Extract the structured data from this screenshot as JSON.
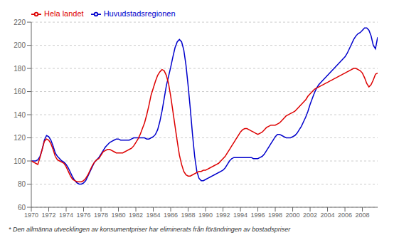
{
  "chart_data": {
    "type": "line",
    "footnote": "* Den allmänna utvecklingen av konsumentpriser har eliminerats från förändringen av bostadspriser",
    "x": [
      1970,
      1970.25,
      1970.5,
      1970.75,
      1971,
      1971.25,
      1971.5,
      1971.75,
      1972,
      1972.25,
      1972.5,
      1972.75,
      1973,
      1973.25,
      1973.5,
      1973.75,
      1974,
      1974.25,
      1974.5,
      1974.75,
      1975,
      1975.25,
      1975.5,
      1975.75,
      1976,
      1976.25,
      1976.5,
      1976.75,
      1977,
      1977.25,
      1977.5,
      1977.75,
      1978,
      1978.25,
      1978.5,
      1978.75,
      1979,
      1979.25,
      1979.5,
      1979.75,
      1980,
      1980.25,
      1980.5,
      1980.75,
      1981,
      1981.25,
      1981.5,
      1981.75,
      1982,
      1982.25,
      1982.5,
      1982.75,
      1983,
      1983.25,
      1983.5,
      1983.75,
      1984,
      1984.25,
      1984.5,
      1984.75,
      1985,
      1985.25,
      1985.5,
      1985.75,
      1986,
      1986.25,
      1986.5,
      1986.75,
      1987,
      1987.25,
      1987.5,
      1987.75,
      1988,
      1988.25,
      1988.5,
      1988.75,
      1989,
      1989.25,
      1989.5,
      1989.75,
      1990,
      1990.25,
      1990.5,
      1990.75,
      1991,
      1991.25,
      1991.5,
      1991.75,
      1992,
      1992.25,
      1992.5,
      1992.75,
      1993,
      1993.25,
      1993.5,
      1993.75,
      1994,
      1994.25,
      1994.5,
      1994.75,
      1995,
      1995.25,
      1995.5,
      1995.75,
      1996,
      1996.25,
      1996.5,
      1996.75,
      1997,
      1997.25,
      1997.5,
      1997.75,
      1998,
      1998.25,
      1998.5,
      1998.75,
      1999,
      1999.25,
      1999.5,
      1999.75,
      2000,
      2000.25,
      2000.5,
      2000.75,
      2001,
      2001.25,
      2001.5,
      2001.75,
      2002,
      2002.25,
      2002.5,
      2002.75,
      2003,
      2003.25,
      2003.5,
      2003.75,
      2004,
      2004.25,
      2004.5,
      2004.75,
      2005,
      2005.25,
      2005.5,
      2005.75,
      2006,
      2006.25,
      2006.5,
      2006.75,
      2007,
      2007.25,
      2007.5,
      2007.75,
      2008,
      2008.25,
      2008.5,
      2008.75,
      2009,
      2009.25,
      2009.5,
      2009.75
    ],
    "xlim": [
      1970,
      2009.75
    ],
    "xticks": [
      1970,
      1972,
      1974,
      1976,
      1978,
      1980,
      1982,
      1984,
      1986,
      1988,
      1990,
      1992,
      1994,
      1996,
      1998,
      2000,
      2002,
      2004,
      2006,
      2008
    ],
    "ylim": [
      60,
      220
    ],
    "yticks": [
      60,
      80,
      100,
      120,
      140,
      160,
      180,
      200,
      220
    ],
    "grid": true,
    "legend": "upper left",
    "series": [
      {
        "name": "Huvudstadsregionen",
        "color": "#0000cc",
        "values": [
          100,
          100,
          100,
          101,
          104,
          110,
          118,
          122,
          121,
          118,
          113,
          107,
          104,
          102,
          100,
          99,
          97,
          94,
          90,
          86,
          83,
          81,
          80,
          80,
          81,
          83,
          87,
          91,
          95,
          99,
          101,
          103,
          106,
          109,
          112,
          114,
          116,
          117,
          118,
          119,
          119,
          118,
          118,
          118,
          118,
          118,
          119,
          120,
          120,
          120,
          120,
          120,
          120,
          119,
          119,
          120,
          121,
          123,
          127,
          134,
          143,
          154,
          165,
          173,
          181,
          190,
          198,
          203,
          205,
          203,
          196,
          183,
          165,
          145,
          123,
          104,
          91,
          85,
          83,
          83,
          84,
          85,
          86,
          87,
          88,
          89,
          90,
          91,
          92,
          94,
          97,
          100,
          102,
          103,
          103,
          103,
          103,
          103,
          103,
          103,
          103,
          103,
          102,
          102,
          102,
          103,
          104,
          106,
          109,
          112,
          115,
          118,
          121,
          123,
          123,
          122,
          121,
          120,
          120,
          120,
          121,
          122,
          124,
          127,
          130,
          134,
          138,
          143,
          149,
          154,
          159,
          163,
          166,
          168,
          170,
          172,
          174,
          176,
          178,
          180,
          182,
          184,
          186,
          188,
          190,
          193,
          197,
          201,
          205,
          208,
          210,
          211,
          213,
          215,
          215,
          213,
          208,
          200,
          197,
          207
        ]
      },
      {
        "name": "Hela landet",
        "color": "#dd0000",
        "values": [
          100,
          99,
          98,
          97,
          103,
          110,
          117,
          119,
          118,
          115,
          110,
          104,
          101,
          100,
          99,
          98,
          95,
          91,
          87,
          84,
          83,
          82,
          82,
          82,
          83,
          85,
          88,
          92,
          96,
          99,
          101,
          102,
          105,
          108,
          109,
          110,
          110,
          109,
          108,
          107,
          107,
          107,
          107,
          108,
          109,
          110,
          111,
          113,
          116,
          119,
          123,
          128,
          133,
          140,
          148,
          157,
          163,
          169,
          174,
          177,
          179,
          178,
          174,
          167,
          156,
          143,
          130,
          117,
          105,
          97,
          91,
          88,
          87,
          87,
          88,
          89,
          90,
          91,
          91,
          92,
          92,
          93,
          94,
          95,
          96,
          97,
          98,
          100,
          102,
          104,
          107,
          110,
          113,
          116,
          119,
          122,
          125,
          127,
          128,
          128,
          127,
          126,
          125,
          124,
          123,
          124,
          125,
          127,
          129,
          130,
          131,
          131,
          131,
          132,
          133,
          135,
          137,
          139,
          140,
          141,
          142,
          143,
          145,
          147,
          149,
          151,
          153,
          156,
          158,
          160,
          162,
          163,
          164,
          165,
          166,
          167,
          168,
          169,
          170,
          171,
          172,
          173,
          174,
          175,
          176,
          177,
          178,
          179,
          180,
          180,
          179,
          178,
          176,
          172,
          167,
          164,
          166,
          170,
          175,
          176
        ]
      }
    ]
  }
}
